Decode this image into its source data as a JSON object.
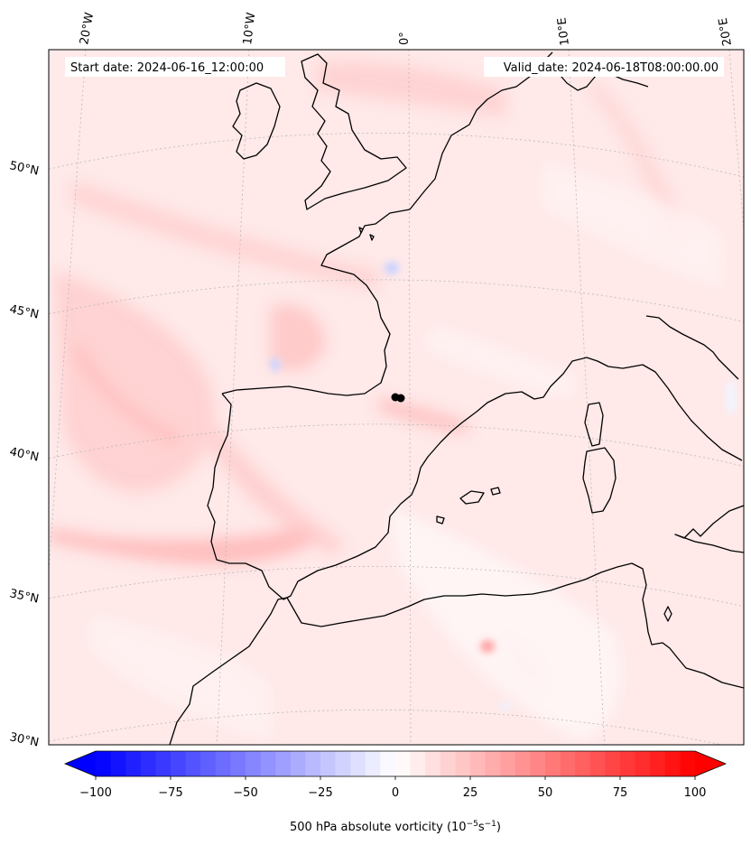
{
  "map": {
    "start_label": "Start date: 2024-06-16_12:00:00",
    "valid_label": "Valid_date: 2024-06-18T08:00:00.00",
    "lon_labels": [
      "20°W",
      "10°W",
      "0°",
      "10°E",
      "20°E"
    ],
    "lat_labels": [
      "50°N",
      "45°N",
      "40°N",
      "35°N",
      "30°N"
    ],
    "colorbar": {
      "title": "500 hPa absolute vorticity (10",
      "title_exp1": "−5",
      "title_mid": "s",
      "title_exp2": "−1",
      "title_end": ")",
      "ticks": [
        "−100",
        "−75",
        "−50",
        "−25",
        "0",
        "25",
        "50",
        "75",
        "100"
      ],
      "range": [
        -100,
        100
      ],
      "colors": {
        "min": "#0000ff",
        "mid": "#ffffff",
        "max": "#ff0000"
      }
    },
    "colors": {
      "coastline": "#000000",
      "field_base": "#ffe9e9",
      "field_strong": "#ffbcbc"
    }
  }
}
